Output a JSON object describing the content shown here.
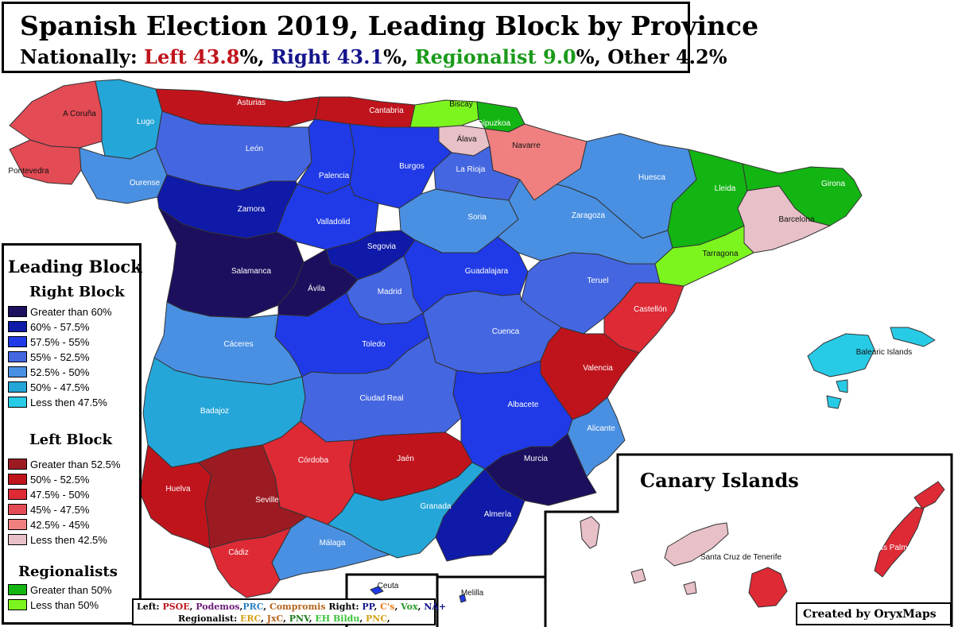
{
  "title": "Spanish Election 2019, Leading Block by Province",
  "subtitle": {
    "prefix": "Nationally: ",
    "left": "Left 43.8",
    "sep1": "%, ",
    "right": "Right 43.1",
    "sep2": "%, ",
    "regional": "Regionalist 9.0",
    "sep3": "%, Other 4.2%"
  },
  "colors": {
    "left_text": "#c0141c",
    "right_text": "#14148c",
    "regional_text": "#1a9a1a"
  },
  "legend": {
    "title": "Leading Block",
    "right_heading": "Right Block",
    "right_items": [
      {
        "label": "Greater than 60%",
        "color": "#1c0f5e"
      },
      {
        "label": "60% - 57.5%",
        "color": "#0f1aa8"
      },
      {
        "label": "57.5% - 55%",
        "color": "#1f3ae6"
      },
      {
        "label": "55% - 52.5%",
        "color": "#4466e0"
      },
      {
        "label": "52.5% - 50%",
        "color": "#4a90e2"
      },
      {
        "label": "50% - 47.5%",
        "color": "#25a6d8"
      },
      {
        "label": "Less then 47.5%",
        "color": "#28cbe6"
      }
    ],
    "left_heading": "Left Block",
    "left_items": [
      {
        "label": "Greater than 52.5%",
        "color": "#9c1b22"
      },
      {
        "label": "50% - 52.5%",
        "color": "#c0141c"
      },
      {
        "label": "47.5% - 50%",
        "color": "#dd2a35"
      },
      {
        "label": "45% - 47.5%",
        "color": "#e34b55"
      },
      {
        "label": "42.5% - 45%",
        "color": "#f08080"
      },
      {
        "label": "Less then 42.5%",
        "color": "#e8c0c8"
      }
    ],
    "regional_heading": "Regionalists",
    "regional_items": [
      {
        "label": "Greater than 50%",
        "color": "#12b512"
      },
      {
        "label": "Less than 50%",
        "color": "#7cf51e"
      }
    ]
  },
  "provinces": [
    {
      "name": "A Coruña",
      "color": "#e34b55"
    },
    {
      "name": "Lugo",
      "color": "#25a6d8"
    },
    {
      "name": "Asturias",
      "color": "#c0141c"
    },
    {
      "name": "Cantabria",
      "color": "#c0141c"
    },
    {
      "name": "Biscay",
      "color": "#7cf51e"
    },
    {
      "name": "Gipuzkoa",
      "color": "#12b512"
    },
    {
      "name": "Álava",
      "color": "#e8c0c8"
    },
    {
      "name": "Navarre",
      "color": "#f08080"
    },
    {
      "name": "Pontevedra",
      "color": "#e34b55"
    },
    {
      "name": "Ourense",
      "color": "#4a90e2"
    },
    {
      "name": "León",
      "color": "#4466e0"
    },
    {
      "name": "Palencia",
      "color": "#1f3ae6"
    },
    {
      "name": "Burgos",
      "color": "#1f3ae6"
    },
    {
      "name": "La Rioja",
      "color": "#4466e0"
    },
    {
      "name": "Huesca",
      "color": "#4a90e2"
    },
    {
      "name": "Lleida",
      "color": "#12b512"
    },
    {
      "name": "Girona",
      "color": "#12b512"
    },
    {
      "name": "Barcelona",
      "color": "#e8c0c8"
    },
    {
      "name": "Tarragona",
      "color": "#7cf51e"
    },
    {
      "name": "Zamora",
      "color": "#0f1aa8"
    },
    {
      "name": "Valladolid",
      "color": "#1f3ae6"
    },
    {
      "name": "Soria",
      "color": "#4a90e2"
    },
    {
      "name": "Zaragoza",
      "color": "#4a90e2"
    },
    {
      "name": "Segovia",
      "color": "#0f1aa8"
    },
    {
      "name": "Salamanca",
      "color": "#1c0f5e"
    },
    {
      "name": "Ávila",
      "color": "#1c0f5e"
    },
    {
      "name": "Madrid",
      "color": "#4466e0"
    },
    {
      "name": "Guadalajara",
      "color": "#1f3ae6"
    },
    {
      "name": "Teruel",
      "color": "#4466e0"
    },
    {
      "name": "Castellón",
      "color": "#dd2a35"
    },
    {
      "name": "Cáceres",
      "color": "#4a90e2"
    },
    {
      "name": "Toledo",
      "color": "#1f3ae6"
    },
    {
      "name": "Cuenca",
      "color": "#4466e0"
    },
    {
      "name": "Valencia",
      "color": "#c0141c"
    },
    {
      "name": "Badajoz",
      "color": "#25a6d8"
    },
    {
      "name": "Ciudad Real",
      "color": "#4466e0"
    },
    {
      "name": "Albacete",
      "color": "#1f3ae6"
    },
    {
      "name": "Alicante",
      "color": "#4a90e2"
    },
    {
      "name": "Córdoba",
      "color": "#dd2a35"
    },
    {
      "name": "Jaén",
      "color": "#c0141c"
    },
    {
      "name": "Murcia",
      "color": "#1c0f5e"
    },
    {
      "name": "Huelva",
      "color": "#c0141c"
    },
    {
      "name": "Seville",
      "color": "#9c1b22"
    },
    {
      "name": "Granada",
      "color": "#25a6d8"
    },
    {
      "name": "Almería",
      "color": "#0f1aa8"
    },
    {
      "name": "Málaga",
      "color": "#4a90e2"
    },
    {
      "name": "Cádiz",
      "color": "#dd2a35"
    },
    {
      "name": "Balearic Islands",
      "color": "#28cbe6"
    },
    {
      "name": "Ceuta",
      "color": "#1f3ae6"
    },
    {
      "name": "Melilla",
      "color": "#1f3ae6"
    },
    {
      "name": "Santa Cruz de Tenerife",
      "color": "#e8c0c8"
    },
    {
      "name": "Las Palmas",
      "color": "#dd2a35"
    }
  ],
  "canary_title": "Canary Islands",
  "parties": {
    "line1": [
      {
        "text": "Left: ",
        "color": "#000000"
      },
      {
        "text": "PSOE",
        "color": "#c0141c"
      },
      {
        "text": ", ",
        "color": "#000000"
      },
      {
        "text": "Podemos",
        "color": "#6a1b7a"
      },
      {
        "text": ",",
        "color": "#000000"
      },
      {
        "text": "PRC",
        "color": "#2a7fc0"
      },
      {
        "text": ", ",
        "color": "#000000"
      },
      {
        "text": "Compromis",
        "color": "#b5651d"
      },
      {
        "text": " Right: ",
        "color": "#000000"
      },
      {
        "text": "PP",
        "color": "#14148c"
      },
      {
        "text": ", ",
        "color": "#000000"
      },
      {
        "text": "C's",
        "color": "#e87a1e"
      },
      {
        "text": ", ",
        "color": "#000000"
      },
      {
        "text": "Vox",
        "color": "#2a9a2a"
      },
      {
        "text": ", ",
        "color": "#000000"
      },
      {
        "text": "NA+",
        "color": "#14148c"
      }
    ],
    "line2": [
      {
        "text": "Regionalist: ",
        "color": "#000000"
      },
      {
        "text": "ERC",
        "color": "#d4a017"
      },
      {
        "text": ", ",
        "color": "#000000"
      },
      {
        "text": "JxC",
        "color": "#b5651d"
      },
      {
        "text": ", ",
        "color": "#000000"
      },
      {
        "text": "PNV",
        "color": "#1a7a1a"
      },
      {
        "text": ", ",
        "color": "#000000"
      },
      {
        "text": "EH Bildu",
        "color": "#3ac43a"
      },
      {
        "text": ", ",
        "color": "#000000"
      },
      {
        "text": "PNC",
        "color": "#d4a017"
      },
      {
        "text": ",",
        "color": "#000000"
      }
    ]
  },
  "credit": "Created by OryxMaps"
}
